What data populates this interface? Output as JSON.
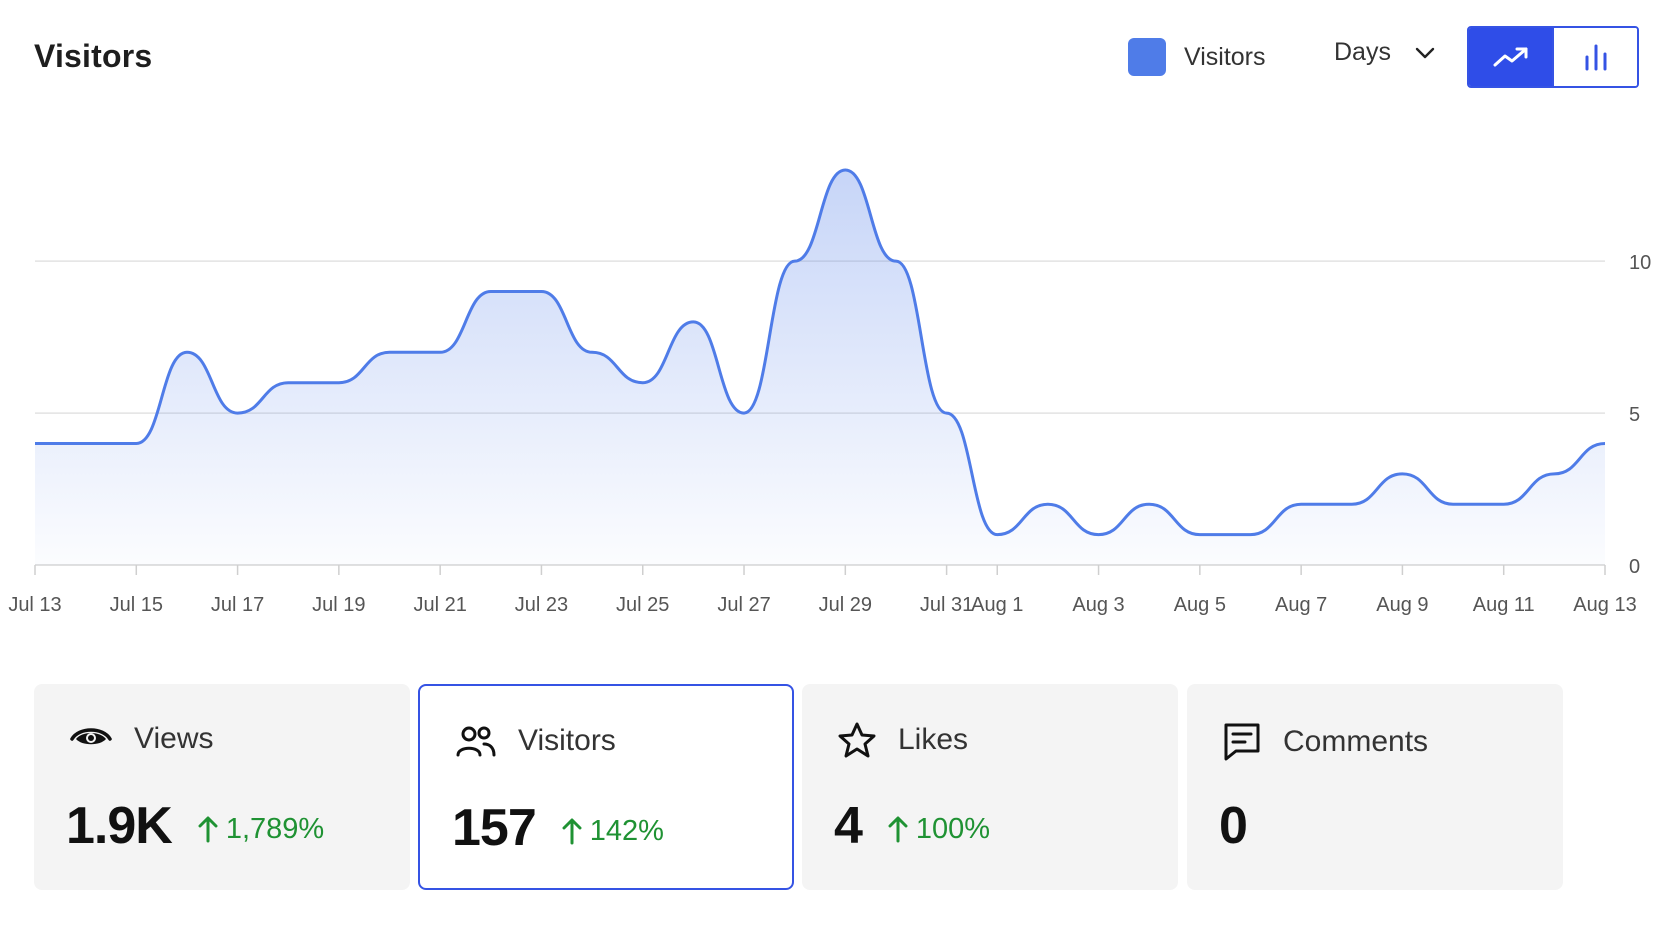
{
  "header": {
    "title": "Visitors",
    "legend_label": "Visitors",
    "legend_color": "#4f7ce8",
    "period_label": "Days",
    "view_toggle": {
      "line_icon": "trending-up-icon",
      "bar_icon": "bar-chart-icon",
      "active": "line"
    }
  },
  "chart_data": {
    "type": "area",
    "title": "",
    "xlabel": "",
    "ylabel": "",
    "ylim": [
      0,
      13
    ],
    "y_ticks": [
      "0",
      "5",
      "10"
    ],
    "y_axis_side": "right",
    "grid": true,
    "x_tick_labels": [
      "Jul 13",
      "Jul 15",
      "Jul 17",
      "Jul 19",
      "Jul 21",
      "Jul 23",
      "Jul 25",
      "Jul 27",
      "Jul 29",
      "Jul 31",
      "Aug 1",
      "Aug 3",
      "Aug 5",
      "Aug 7",
      "Aug 9",
      "Aug 11",
      "Aug 13"
    ],
    "x": [
      "Jul 13",
      "Jul 14",
      "Jul 15",
      "Jul 16",
      "Jul 17",
      "Jul 18",
      "Jul 19",
      "Jul 20",
      "Jul 21",
      "Jul 22",
      "Jul 23",
      "Jul 24",
      "Jul 25",
      "Jul 26",
      "Jul 27",
      "Jul 28",
      "Jul 29",
      "Jul 30",
      "Jul 31",
      "Aug 1",
      "Aug 2",
      "Aug 3",
      "Aug 4",
      "Aug 5",
      "Aug 6",
      "Aug 7",
      "Aug 8",
      "Aug 9",
      "Aug 10",
      "Aug 11",
      "Aug 12",
      "Aug 13"
    ],
    "series": [
      {
        "values": [
          4,
          4,
          4,
          7,
          5,
          6,
          6,
          7,
          7,
          9,
          9,
          7,
          6,
          8,
          5,
          10,
          13,
          10,
          5,
          1,
          2,
          1,
          2,
          1,
          1,
          2,
          2,
          3,
          2,
          2,
          3,
          4
        ],
        "color": "#4f7ce8"
      }
    ]
  },
  "cards": [
    {
      "icon": "eye-icon",
      "label": "Views",
      "value": "1.9K",
      "delta": "1,789%",
      "selected": false
    },
    {
      "icon": "users-icon",
      "label": "Visitors",
      "value": "157",
      "delta": "142%",
      "selected": true
    },
    {
      "icon": "star-icon",
      "label": "Likes",
      "value": "4",
      "delta": "100%",
      "selected": false
    },
    {
      "icon": "comment-icon",
      "label": "Comments",
      "value": "0",
      "delta": "",
      "selected": false
    }
  ],
  "colors": {
    "accent": "#3553e4",
    "positive": "#1f9233",
    "line": "#4f7ce8"
  }
}
